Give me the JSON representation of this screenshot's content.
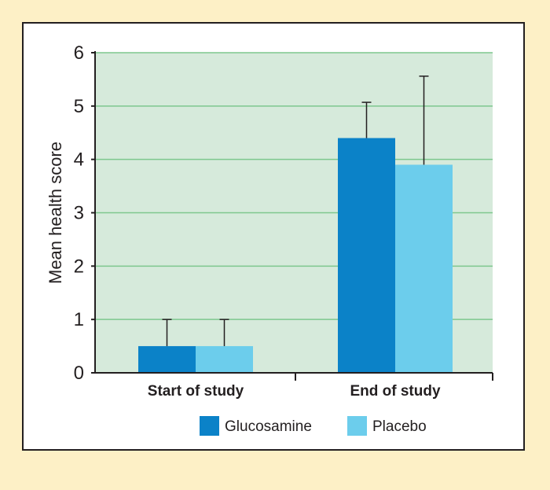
{
  "chart_data": {
    "type": "bar",
    "title": "",
    "xlabel": "",
    "ylabel": "Mean health score",
    "ylim": [
      0,
      6
    ],
    "yticks": [
      0,
      1,
      2,
      3,
      4,
      5,
      6
    ],
    "grid": true,
    "legend_position": "bottom",
    "categories": [
      "Start of study",
      "End of study"
    ],
    "series": [
      {
        "name": "Glucosamine",
        "values": [
          0.5,
          4.4
        ],
        "error_upper": [
          1.0,
          5.07
        ],
        "color": "#0b82c8"
      },
      {
        "name": "Placebo",
        "values": [
          0.5,
          3.9
        ],
        "error_upper": [
          1.0,
          5.56
        ],
        "color": "#6ccdec"
      }
    ]
  },
  "colors": {
    "page_background": "#fdf0c6",
    "plot_background": "#d6eadb",
    "gridline": "#7ec78e",
    "axis": "#231f20"
  }
}
